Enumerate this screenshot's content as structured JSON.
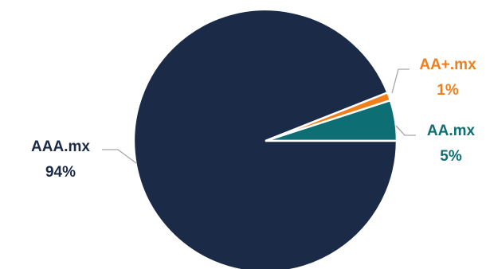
{
  "chart_data": {
    "type": "pie",
    "title": "",
    "slices": [
      {
        "label": "AAA.mx",
        "value": 94,
        "pct_label": "94%",
        "color": "#1b2a47"
      },
      {
        "label": "AA+.mx",
        "value": 1,
        "pct_label": "1%",
        "color": "#f07e1b"
      },
      {
        "label": "AA.mx",
        "value": 5,
        "pct_label": "5%",
        "color": "#0d6e73"
      }
    ],
    "start_angle_deg": 0,
    "direction": "counterclockwise",
    "legend": "none",
    "leader_line_color": "#a6a6a6"
  }
}
